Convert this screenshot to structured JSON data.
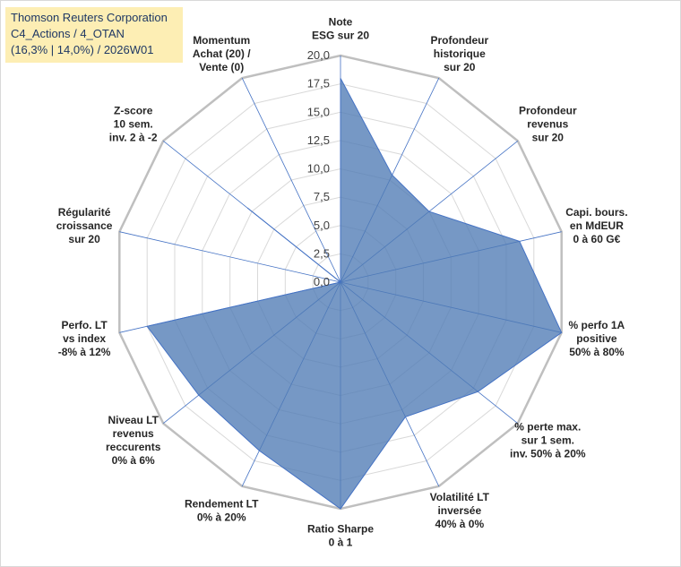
{
  "title_box": {
    "line1": "Thomson Reuters Corporation",
    "line2": "C4_Actions / 4_OTAN",
    "line3": "(16,3% | 14,0%) / 2026W01"
  },
  "colors": {
    "fill": "#4f7bb5",
    "stroke": "#4472c4",
    "spoke": "#4472c4",
    "ring": "#d9d9d9",
    "outer_ring": "#bfbfbf",
    "title_bg": "#fdeeb4"
  },
  "chart_data": {
    "type": "radar",
    "rmax": 20,
    "ticks": [
      "0,0",
      "2,5",
      "5,0",
      "7,5",
      "10,0",
      "12,5",
      "15,0",
      "17,5",
      "20,0"
    ],
    "grid": true,
    "axes": [
      {
        "lines": [
          "Note",
          "ESG sur 20"
        ]
      },
      {
        "lines": [
          "Profondeur",
          "historique",
          "sur 20"
        ]
      },
      {
        "lines": [
          "Profondeur",
          "revenus",
          "sur 20"
        ]
      },
      {
        "lines": [
          "Capi. bours.",
          "en MdEUR",
          "0 à 60 G€"
        ]
      },
      {
        "lines": [
          "% perfo 1A",
          "positive",
          "50% à 80%"
        ]
      },
      {
        "lines": [
          "% perte max.",
          "sur 1 sem.",
          "inv. 50% à 20%"
        ]
      },
      {
        "lines": [
          "Volatilité LT",
          "inversée",
          "40% à 0%"
        ]
      },
      {
        "lines": [
          "Ratio Sharpe",
          "0 à 1"
        ]
      },
      {
        "lines": [
          "Rendement LT",
          "0% à 20%"
        ]
      },
      {
        "lines": [
          "Niveau LT",
          "revenus",
          "reccurents",
          "0% à 6%"
        ]
      },
      {
        "lines": [
          "Perfo. LT",
          "vs index",
          "-8% à 12%"
        ]
      },
      {
        "lines": [
          "Régularité",
          "croissance",
          "sur 20"
        ]
      },
      {
        "lines": [
          "Z-score",
          "10 sem.",
          "inv. 2 à -2"
        ]
      },
      {
        "lines": [
          "Momentum",
          "Achat (20) /",
          "Vente (0)"
        ]
      }
    ],
    "values": [
      18,
      10.5,
      10,
      16.2,
      20,
      15.5,
      13.2,
      20,
      16.5,
      16,
      17.5,
      0,
      10.5,
      0
    ]
  }
}
